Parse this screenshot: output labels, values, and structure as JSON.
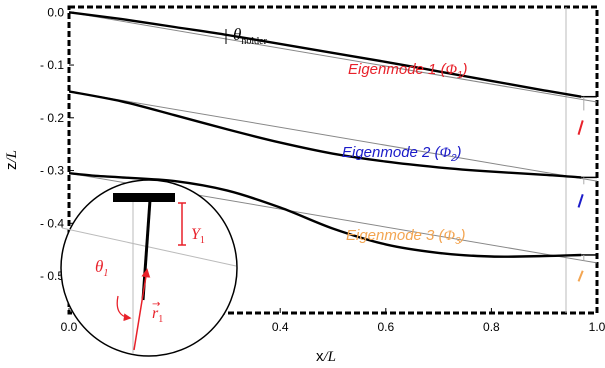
{
  "chart_data": {
    "type": "line",
    "xlabel": {
      "main": "x",
      "sub": "/L"
    },
    "ylabel": {
      "main": "z",
      "sub": "/L"
    },
    "xlim": [
      0,
      1
    ],
    "ylim": [
      -0.57,
      0.01
    ],
    "x_ticks": [
      0.0,
      0.2,
      0.4,
      0.6,
      0.8,
      1.0
    ],
    "x_tick_labels": [
      "0.0",
      "0.2",
      "0.4",
      "0.6",
      "0.8",
      "1.0"
    ],
    "y_ticks": [
      0.0,
      -0.1,
      -0.2,
      -0.3,
      -0.4,
      -0.5
    ],
    "y_tick_labels": [
      "0.0",
      "- 0.1",
      "- 0.2",
      "- 0.3",
      "- 0.4",
      "- 0.5"
    ],
    "grid": false,
    "frame": "dashed-border",
    "holder_label": {
      "symbol": "θ",
      "subscript": "holder"
    },
    "eigenmodes": [
      {
        "label": "Eigenmode 1 (",
        "symbol": "Φ",
        "subscript": "1",
        "close": ")",
        "color": "#e8212a",
        "x": [
          0.0,
          0.1,
          0.2,
          0.3,
          0.4,
          0.5,
          0.6,
          0.7,
          0.8,
          0.9,
          0.97
        ],
        "deformed": [
          0.0,
          -0.013,
          -0.028,
          -0.043,
          -0.06,
          -0.077,
          -0.094,
          -0.112,
          -0.13,
          -0.148,
          -0.16
        ],
        "straight": [
          0.0,
          -0.017,
          -0.034,
          -0.051,
          -0.068,
          -0.085,
          -0.102,
          -0.119,
          -0.136,
          -0.153,
          -0.165
        ],
        "tip_amplitude": [
          -0.205,
          -0.232
        ]
      },
      {
        "label": "Eigenmode 2 (",
        "symbol": "Φ",
        "subscript": "2",
        "close": ")",
        "color": "#1c1cc9",
        "x": [
          0.0,
          0.1,
          0.2,
          0.3,
          0.4,
          0.5,
          0.6,
          0.7,
          0.8,
          0.9,
          0.97
        ],
        "deformed": [
          -0.15,
          -0.169,
          -0.195,
          -0.222,
          -0.247,
          -0.268,
          -0.283,
          -0.294,
          -0.302,
          -0.308,
          -0.313
        ],
        "straight": [
          -0.15,
          -0.167,
          -0.184,
          -0.201,
          -0.218,
          -0.235,
          -0.252,
          -0.269,
          -0.286,
          -0.303,
          -0.315
        ],
        "tip_amplitude": [
          -0.345,
          -0.37
        ]
      },
      {
        "label": "Eigenmode 3 (",
        "symbol": "Φ",
        "subscript": "3",
        "close": ")",
        "color": "#f3a551",
        "x": [
          0.0,
          0.05,
          0.1,
          0.2,
          0.3,
          0.4,
          0.5,
          0.6,
          0.7,
          0.8,
          0.9,
          0.97
        ],
        "deformed": [
          -0.305,
          -0.31,
          -0.313,
          -0.32,
          -0.338,
          -0.37,
          -0.41,
          -0.44,
          -0.456,
          -0.463,
          -0.462,
          -0.46
        ],
        "straight": [
          -0.305,
          -0.314,
          -0.322,
          -0.339,
          -0.356,
          -0.373,
          -0.39,
          -0.407,
          -0.424,
          -0.441,
          -0.458,
          -0.47
        ],
        "tip_amplitude": [
          -0.49,
          -0.51
        ]
      }
    ],
    "inset": {
      "theta": {
        "symbol": "θ",
        "subscript": "1"
      },
      "Y": {
        "symbol": "Y",
        "subscript": "1"
      },
      "r": {
        "symbol": "r",
        "subscript": "1"
      }
    }
  },
  "colors": {
    "red": "#e8212a",
    "blue": "#1c1cc9",
    "orange": "#f3a551",
    "gray": "#999999"
  }
}
